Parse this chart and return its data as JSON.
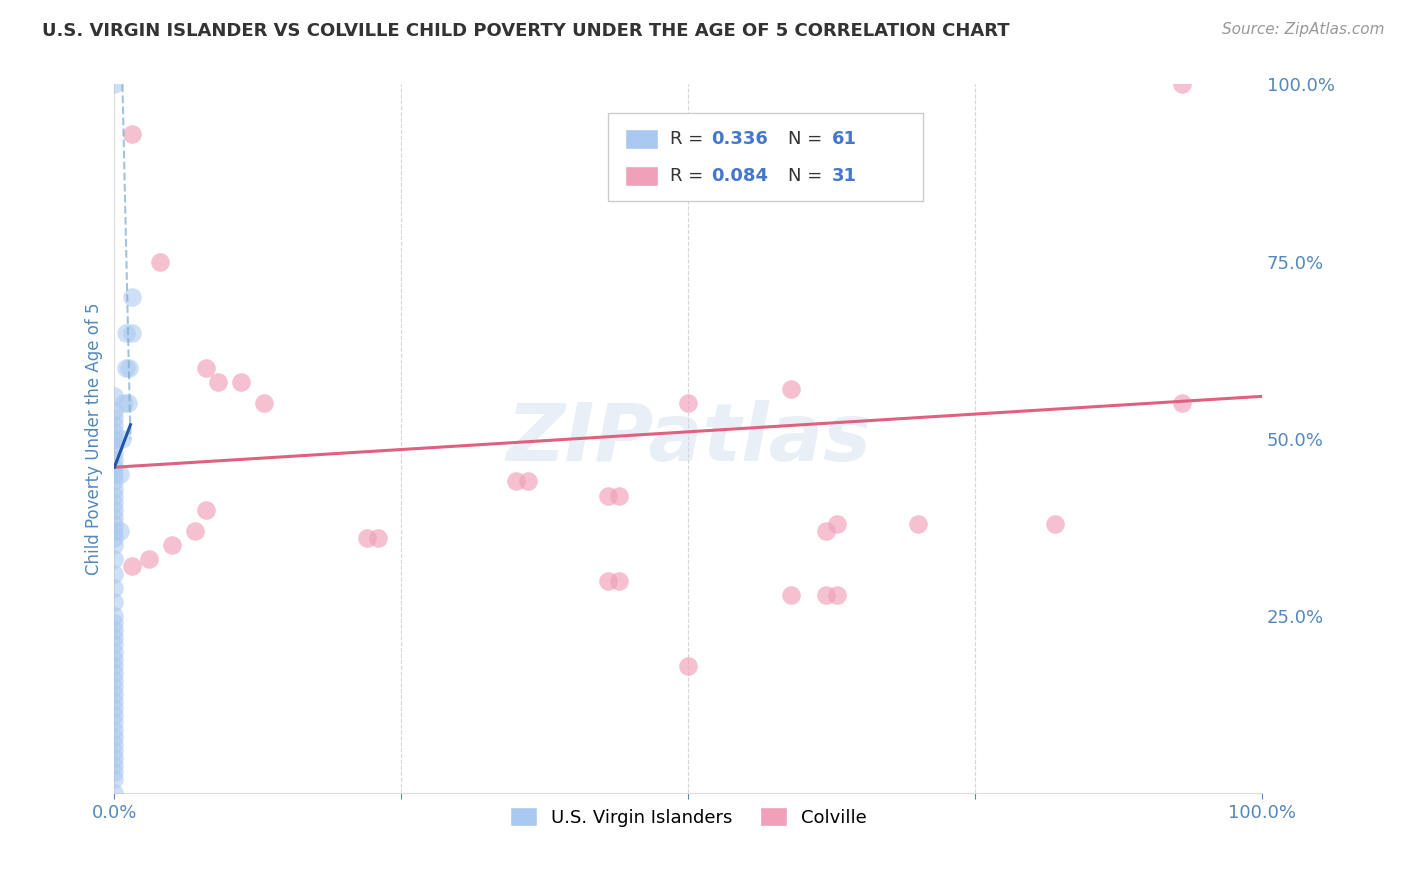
{
  "title": "U.S. VIRGIN ISLANDER VS COLVILLE CHILD POVERTY UNDER THE AGE OF 5 CORRELATION CHART",
  "source": "Source: ZipAtlas.com",
  "ylabel": "Child Poverty Under the Age of 5",
  "xlim": [
    0.0,
    1.0
  ],
  "ylim": [
    0.0,
    1.0
  ],
  "xticks": [
    0.0,
    0.25,
    0.5,
    0.75,
    1.0
  ],
  "yticks": [
    0.25,
    0.5,
    0.75,
    1.0
  ],
  "xtick_labels": [
    "0.0%",
    "",
    "",
    "",
    "100.0%"
  ],
  "ytick_labels_right": [
    "25.0%",
    "50.0%",
    "75.0%",
    "100.0%"
  ],
  "blue_color": "#A8C8F0",
  "blue_line_color": "#7AAAD0",
  "pink_color": "#F0A0B8",
  "pink_line_color": "#E06080",
  "blue_R": 0.336,
  "blue_N": 61,
  "pink_R": 0.084,
  "pink_N": 31,
  "blue_label": "U.S. Virgin Islanders",
  "pink_label": "Colville",
  "blue_points_x": [
    0.0,
    0.0,
    0.0,
    0.0,
    0.0,
    0.0,
    0.0,
    0.0,
    0.0,
    0.0,
    0.0,
    0.0,
    0.0,
    0.0,
    0.0,
    0.0,
    0.0,
    0.0,
    0.0,
    0.0,
    0.0,
    0.0,
    0.0,
    0.0,
    0.0,
    0.0,
    0.0,
    0.0,
    0.0,
    0.0,
    0.0,
    0.0,
    0.0,
    0.0,
    0.0,
    0.0,
    0.0,
    0.0,
    0.0,
    0.0,
    0.0,
    0.0,
    0.0,
    0.0,
    0.0,
    0.0,
    0.0,
    0.0,
    0.0,
    0.0,
    0.005,
    0.005,
    0.007,
    0.008,
    0.01,
    0.01,
    0.012,
    0.013,
    0.015,
    0.015,
    0.0
  ],
  "blue_points_y": [
    0.0,
    0.02,
    0.03,
    0.04,
    0.05,
    0.06,
    0.07,
    0.08,
    0.09,
    0.1,
    0.11,
    0.12,
    0.13,
    0.14,
    0.15,
    0.16,
    0.17,
    0.18,
    0.19,
    0.2,
    0.21,
    0.22,
    0.23,
    0.24,
    0.25,
    0.27,
    0.29,
    0.31,
    0.33,
    0.35,
    0.36,
    0.37,
    0.38,
    0.39,
    0.4,
    0.41,
    0.42,
    0.43,
    0.44,
    0.45,
    0.46,
    0.47,
    0.48,
    0.49,
    0.5,
    0.51,
    0.52,
    0.53,
    0.54,
    0.56,
    0.37,
    0.45,
    0.5,
    0.55,
    0.6,
    0.65,
    0.55,
    0.6,
    0.65,
    0.7,
    1.0
  ],
  "pink_points_x": [
    0.015,
    0.04,
    0.08,
    0.09,
    0.11,
    0.13,
    0.35,
    0.36,
    0.43,
    0.44,
    0.5,
    0.59,
    0.62,
    0.63,
    0.7,
    0.82,
    0.93,
    0.015,
    0.03,
    0.05,
    0.07,
    0.08,
    0.22,
    0.23,
    0.43,
    0.44,
    0.5,
    0.59,
    0.62,
    0.63,
    0.93
  ],
  "pink_points_y": [
    0.93,
    0.75,
    0.6,
    0.58,
    0.58,
    0.55,
    0.44,
    0.44,
    0.42,
    0.42,
    0.55,
    0.57,
    0.37,
    0.38,
    0.38,
    0.38,
    1.0,
    0.32,
    0.33,
    0.35,
    0.37,
    0.4,
    0.36,
    0.36,
    0.3,
    0.3,
    0.18,
    0.28,
    0.28,
    0.28,
    0.55
  ],
  "pink_trend_x0": 0.0,
  "pink_trend_y0": 0.46,
  "pink_trend_x1": 1.0,
  "pink_trend_y1": 0.56,
  "blue_trend_dashed_x0": 0.007,
  "blue_trend_dashed_y0": 1.0,
  "blue_trend_dashed_x1": 0.014,
  "blue_trend_dashed_y1": 0.5,
  "blue_trend_solid_x0": 0.0,
  "blue_trend_solid_y0": 0.46,
  "blue_trend_solid_x1": 0.014,
  "blue_trend_solid_y1": 0.52,
  "watermark_text": "ZIPatlas",
  "background_color": "#FFFFFF",
  "grid_color": "#CCCCCC",
  "title_color": "#333333",
  "source_color": "#999999",
  "axis_label_color": "#5588BB",
  "tick_color": "#5588BB"
}
